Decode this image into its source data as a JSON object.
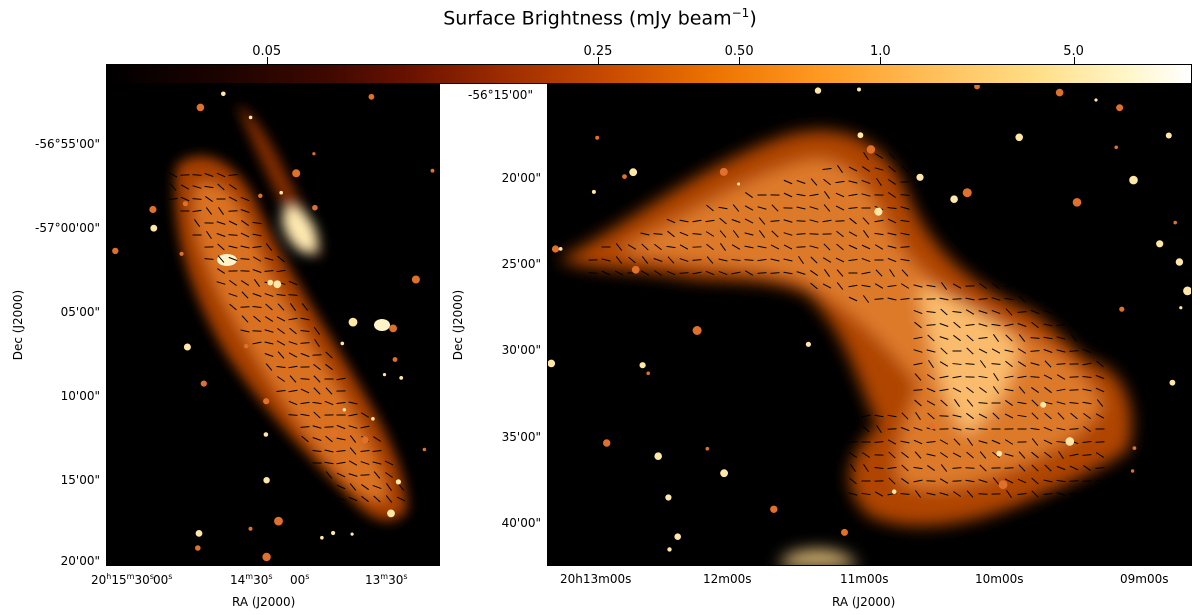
{
  "colorbar": {
    "title_main": "Surface Brightness (mJy beam",
    "title_exp": "−1",
    "title_close": ")",
    "ticks": [
      {
        "label": "0.05",
        "frac": 0.148
      },
      {
        "label": "0.25",
        "frac": 0.453
      },
      {
        "label": "0.50",
        "frac": 0.583
      },
      {
        "label": "1.0",
        "frac": 0.713
      },
      {
        "label": "5.0",
        "frac": 0.891
      }
    ]
  },
  "left_panel": {
    "ylabel": "Dec (J2000)",
    "xlabel": "RA (J2000)",
    "dec_ticks": [
      "-56°55'00\"",
      "-57°00'00\"",
      "05'00\"",
      "10'00\"",
      "15'00\"",
      "20'00\""
    ],
    "ra_ticks": [
      {
        "main": "20",
        "h": "h",
        "m1": "15",
        "m": "m",
        "s1": "30",
        "s": "s"
      },
      {
        "main": "00",
        "s": "s"
      },
      {
        "main": "14",
        "m": "m",
        "s1": "30",
        "s": "s"
      },
      {
        "main": "00",
        "s": "s"
      },
      {
        "main": "13",
        "m": "m",
        "s1": "30",
        "s": "s"
      }
    ]
  },
  "right_panel": {
    "ylabel": "Dec (J2000)",
    "xlabel": "RA (J2000)",
    "dec_top": "-56°15'00\"",
    "dec_ticks": [
      "20'00\"",
      "25'00\"",
      "30'00\"",
      "35'00\"",
      "40'00\""
    ],
    "ra_ticks": [
      "20h13m00s",
      "12m00s",
      "11m00s",
      "10m00s",
      "09m00s"
    ]
  },
  "colors": {
    "background": "#000000",
    "emission_faint": "#7a1e00",
    "emission_mid": "#e07a20",
    "emission_bright": "#ffd27a",
    "vector": "#000000"
  }
}
